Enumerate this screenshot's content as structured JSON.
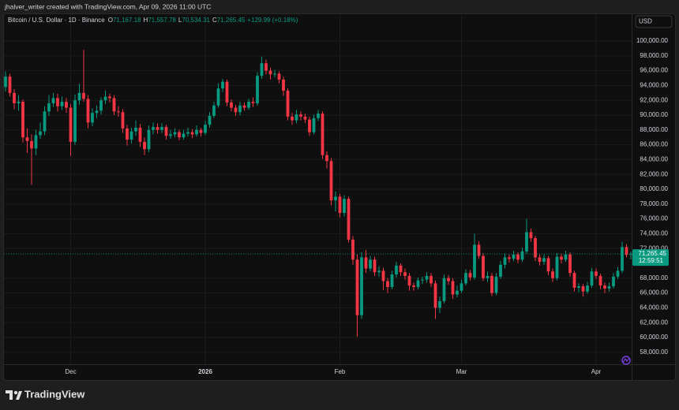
{
  "attribution": "jhalver_writer created with TradingView.com, Apr 09, 2026 11:00 UTC",
  "brand": "TradingView",
  "chart_data": {
    "type": "candlestick",
    "title": "Bitcoin / U.S. Dollar · 1D · Binance",
    "ohlc_legend": [
      {
        "key": "O",
        "text": "71,167.18"
      },
      {
        "key": "H",
        "text": "71,557.78"
      },
      {
        "key": "L",
        "text": "70,534.31"
      },
      {
        "key": "C",
        "text": "71,265.45"
      }
    ],
    "change_label": "+129.99 (+0.18%)",
    "currency": "USD",
    "last_price_label": "71,265.45",
    "countdown": "12:59:51",
    "up_color": "#089981",
    "down_color": "#f23645",
    "grid": true,
    "categories": [
      null,
      null,
      null,
      null,
      null,
      null,
      null,
      null,
      null,
      null,
      null,
      null,
      null,
      null,
      null,
      "Dec",
      null,
      null,
      null,
      null,
      null,
      null,
      null,
      null,
      null,
      null,
      null,
      null,
      null,
      null,
      null,
      null,
      null,
      null,
      null,
      null,
      null,
      null,
      null,
      null,
      null,
      null,
      null,
      null,
      null,
      null,
      "2026",
      null,
      null,
      null,
      null,
      null,
      null,
      null,
      null,
      null,
      null,
      null,
      null,
      null,
      null,
      null,
      null,
      null,
      null,
      null,
      null,
      null,
      null,
      null,
      null,
      null,
      null,
      null,
      null,
      null,
      null,
      "Feb",
      null,
      null,
      null,
      null,
      null,
      null,
      null,
      null,
      null,
      null,
      null,
      null,
      null,
      null,
      null,
      null,
      null,
      null,
      null,
      null,
      null,
      null,
      null,
      null,
      null,
      null,
      null,
      "Mar",
      null,
      null,
      null,
      null,
      null,
      null,
      null,
      null,
      null,
      null,
      null,
      null,
      null,
      null,
      null,
      null,
      null,
      null,
      null,
      null,
      null,
      null,
      null,
      null,
      null,
      null,
      null,
      null,
      null,
      null,
      "Apr",
      null,
      null,
      null,
      null,
      null,
      null,
      null,
      null
    ],
    "open": [
      93800,
      95200,
      93000,
      91600,
      91800,
      87000,
      86500,
      85500,
      87300,
      87800,
      90500,
      91600,
      92300,
      91200,
      91800,
      91000,
      86400,
      92000,
      93000,
      92200,
      89000,
      90300,
      90600,
      92000,
      92500,
      92300,
      90500,
      90400,
      88200,
      86700,
      87800,
      88300,
      86400,
      85400,
      88000,
      88400,
      88000,
      88400,
      87200,
      87400,
      87700,
      87000,
      87500,
      87700,
      87400,
      88000,
      87600,
      88700,
      89900,
      91300,
      93600,
      94500,
      91700,
      91000,
      90400,
      91300,
      91000,
      91800,
      91600,
      95300,
      97000,
      96000,
      95500,
      95600,
      94800,
      93300,
      89800,
      89300,
      90100,
      89800,
      89400,
      87700,
      89600,
      90200,
      84600,
      83800,
      78500,
      79000,
      76800,
      78700,
      73200,
      70500,
      63000,
      70800,
      69300,
      70500,
      68800,
      69000,
      67600,
      66800,
      68500,
      69700,
      68800,
      68300,
      67000,
      66800,
      67700,
      67800,
      68300,
      67300,
      64000,
      64900,
      68000,
      67600,
      65800,
      66300,
      67300,
      68700,
      68100,
      72500,
      71000,
      68000,
      68300,
      66000,
      68200,
      69800,
      70800,
      70600,
      71200,
      70500,
      71600,
      74200,
      73400,
      70800,
      70200,
      70700,
      68900,
      68000,
      70900,
      70500,
      71200,
      68700,
      66700,
      66900,
      66200,
      67000,
      68900,
      68300,
      67000,
      66600,
      66900,
      68200,
      69000,
      72200,
      71167.18
    ],
    "high": [
      95900,
      95600,
      93500,
      92700,
      92100,
      88200,
      87400,
      88000,
      89000,
      91200,
      92700,
      93000,
      92900,
      92500,
      92300,
      91500,
      92800,
      94200,
      98800,
      92700,
      90900,
      91300,
      92400,
      93300,
      92900,
      92700,
      91200,
      90800,
      88700,
      88300,
      89300,
      88800,
      87000,
      88600,
      89000,
      88900,
      88900,
      88700,
      88000,
      88200,
      88000,
      88000,
      88300,
      88100,
      88600,
      88300,
      89200,
      90400,
      91800,
      94300,
      94900,
      94800,
      92100,
      91400,
      91800,
      91700,
      92200,
      92400,
      95800,
      97900,
      97500,
      96400,
      96100,
      95900,
      95200,
      93600,
      90300,
      90700,
      90500,
      90200,
      89800,
      90100,
      90700,
      90500,
      85100,
      84200,
      79700,
      79400,
      79200,
      79000,
      73700,
      71200,
      71500,
      71800,
      71000,
      70900,
      69600,
      69400,
      68000,
      69000,
      70200,
      70000,
      69300,
      68700,
      67400,
      68100,
      68200,
      68800,
      68700,
      67700,
      65500,
      68500,
      68400,
      68000,
      67000,
      67800,
      69200,
      69100,
      74000,
      73000,
      71400,
      68900,
      68700,
      68700,
      70300,
      71300,
      71200,
      71700,
      71500,
      72100,
      76000,
      74700,
      73700,
      71200,
      71200,
      71000,
      69300,
      71400,
      71300,
      71700,
      71500,
      69000,
      67300,
      67200,
      67500,
      69400,
      69300,
      68600,
      67400,
      67400,
      68700,
      69500,
      72900,
      72600,
      71557.78
    ],
    "low": [
      93200,
      92500,
      90800,
      90600,
      86300,
      84900,
      80600,
      84600,
      86800,
      87300,
      89900,
      91100,
      90500,
      90700,
      90300,
      84500,
      86000,
      91400,
      91800,
      88200,
      88500,
      89600,
      90100,
      91500,
      91700,
      90000,
      89800,
      87600,
      85900,
      86200,
      87200,
      85700,
      84600,
      85000,
      87400,
      87500,
      87600,
      86700,
      86800,
      87000,
      86600,
      86700,
      87100,
      86900,
      87100,
      87100,
      87300,
      88300,
      89600,
      91000,
      93100,
      91200,
      90500,
      89900,
      90000,
      90600,
      90700,
      91100,
      91300,
      94900,
      95500,
      94800,
      95100,
      94300,
      92600,
      89300,
      88700,
      88900,
      89300,
      88900,
      87200,
      87400,
      89200,
      84100,
      82800,
      77800,
      77000,
      76200,
      76300,
      72800,
      69800,
      60100,
      62500,
      68700,
      68900,
      68300,
      68200,
      66400,
      66000,
      66500,
      68100,
      68300,
      67800,
      66300,
      66300,
      66500,
      67200,
      67400,
      66800,
      62500,
      63300,
      64600,
      67100,
      65200,
      65400,
      66000,
      67000,
      67700,
      67800,
      70600,
      67600,
      67500,
      65600,
      65700,
      67900,
      69300,
      70100,
      70300,
      70000,
      70200,
      71300,
      72900,
      70300,
      69700,
      69800,
      68400,
      67500,
      67700,
      70000,
      70200,
      68200,
      66200,
      66100,
      65500,
      65900,
      66700,
      67900,
      66500,
      66000,
      66200,
      66600,
      67900,
      68700,
      70800,
      70534.31
    ],
    "close": [
      95200,
      93000,
      91600,
      91800,
      87000,
      86500,
      85500,
      87300,
      87800,
      90500,
      91600,
      92300,
      91200,
      91800,
      91000,
      86400,
      92000,
      93000,
      92200,
      89000,
      90300,
      90600,
      92000,
      92500,
      92300,
      90500,
      90400,
      88200,
      86700,
      87800,
      88300,
      86400,
      85400,
      88000,
      88400,
      88000,
      88400,
      87200,
      87400,
      87700,
      87000,
      87500,
      87700,
      87400,
      88000,
      87600,
      88700,
      89900,
      91300,
      93600,
      94500,
      91700,
      91000,
      90400,
      91300,
      91000,
      91800,
      91600,
      95300,
      97000,
      96000,
      95500,
      95600,
      94800,
      93300,
      89800,
      89300,
      90100,
      89800,
      89400,
      87700,
      89600,
      90200,
      84600,
      83800,
      78500,
      79000,
      76800,
      78700,
      73200,
      70500,
      63000,
      70800,
      69300,
      70500,
      68800,
      69000,
      67600,
      66800,
      68500,
      69700,
      68800,
      68300,
      67000,
      66800,
      67700,
      67800,
      68300,
      67300,
      64000,
      64900,
      68000,
      67600,
      65800,
      66300,
      67300,
      68700,
      68100,
      72500,
      71000,
      68000,
      68300,
      66000,
      68200,
      69800,
      70800,
      70600,
      71200,
      70500,
      71600,
      74200,
      73400,
      70800,
      70200,
      70700,
      68900,
      68000,
      70900,
      70500,
      71200,
      68700,
      66700,
      66900,
      66200,
      67000,
      68900,
      68300,
      67000,
      66600,
      66900,
      68200,
      69000,
      72200,
      71135.46,
      71265.45
    ],
    "ylim": [
      54250,
      103620
    ],
    "yticks": [
      {
        "value": 58000,
        "label": "58,000.00"
      },
      {
        "value": 60000,
        "label": "60,000.00"
      },
      {
        "value": 62000,
        "label": "62,000.00"
      },
      {
        "value": 64000,
        "label": "64,000.00"
      },
      {
        "value": 66000,
        "label": "66,000.00"
      },
      {
        "value": 68000,
        "label": "68,000.00"
      },
      {
        "value": 72000,
        "label": "72,000.00"
      },
      {
        "value": 74000,
        "label": "74,000.00"
      },
      {
        "value": 76000,
        "label": "76,000.00"
      },
      {
        "value": 78000,
        "label": "78,000.00"
      },
      {
        "value": 80000,
        "label": "80,000.00"
      },
      {
        "value": 82000,
        "label": "82,000.00"
      },
      {
        "value": 84000,
        "label": "84,000.00"
      },
      {
        "value": 86000,
        "label": "86,000.00"
      },
      {
        "value": 88000,
        "label": "88,000.00"
      },
      {
        "value": 90000,
        "label": "90,000.00"
      },
      {
        "value": 92000,
        "label": "92,000.00"
      },
      {
        "value": 94000,
        "label": "94,000.00"
      },
      {
        "value": 96000,
        "label": "96,000.00"
      },
      {
        "value": 98000,
        "label": "98,000.00"
      },
      {
        "value": 100000,
        "label": "100,000.00"
      }
    ]
  }
}
